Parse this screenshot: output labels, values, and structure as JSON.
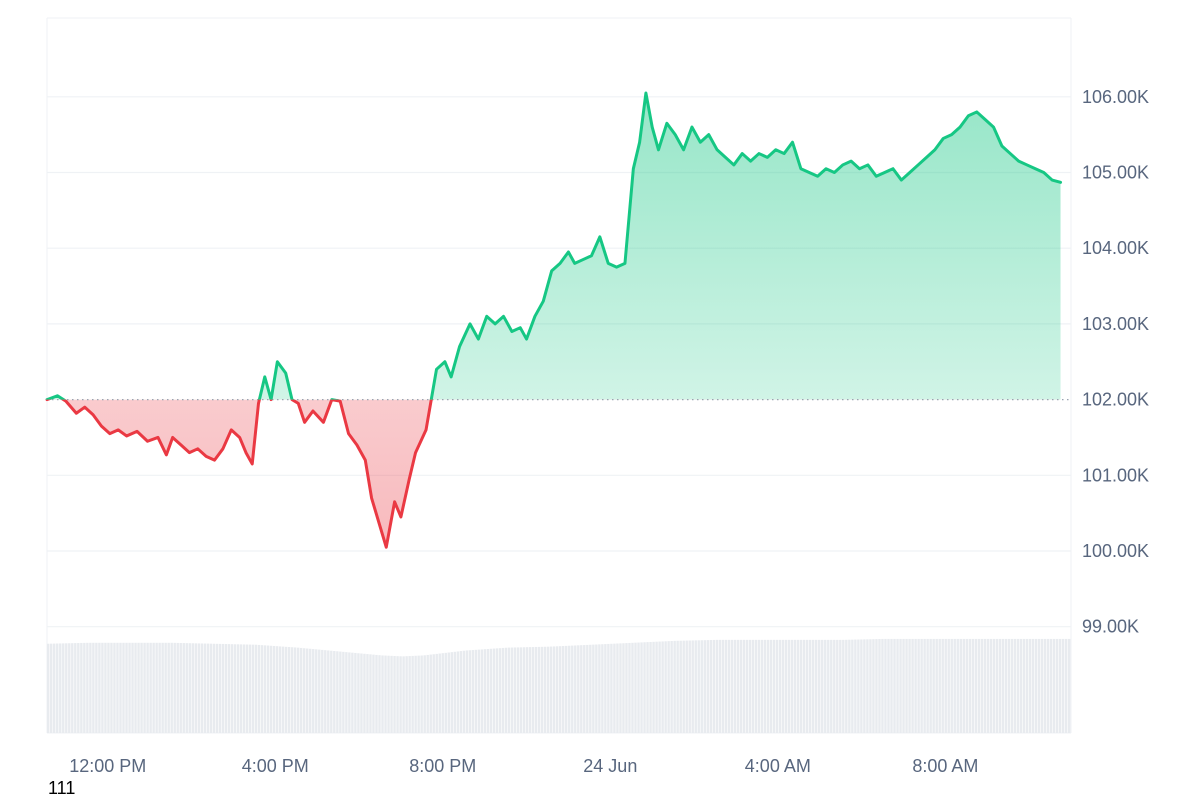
{
  "chart_data": {
    "type": "line",
    "baseline": 102000,
    "ylim": [
      98200,
      107000
    ],
    "y_ticks": [
      99000,
      100000,
      101000,
      102000,
      103000,
      104000,
      105000,
      106000
    ],
    "y_tick_labels": [
      "99.00K",
      "100.00K",
      "101.00K",
      "102.00K",
      "103.00K",
      "104.00K",
      "105.00K",
      "106.00K"
    ],
    "x_ticks": [
      {
        "t": 1.45,
        "label": "12:00 PM"
      },
      {
        "t": 5.45,
        "label": "4:00 PM"
      },
      {
        "t": 9.45,
        "label": "8:00 PM"
      },
      {
        "t": 13.45,
        "label": "24 Jun"
      },
      {
        "t": 17.45,
        "label": "4:00 AM"
      },
      {
        "t": 21.45,
        "label": "8:00 AM"
      }
    ],
    "xlim": [
      0,
      24.45
    ],
    "colors": {
      "up": "#16c784",
      "down": "#ea3943",
      "volume": "#e8ebef",
      "grid": "#eff2f5",
      "baseline_dots": "#9aa3b1"
    },
    "series": [
      {
        "values": [
          [
            0.0,
            102000
          ],
          [
            0.25,
            102050
          ],
          [
            0.45,
            101980
          ],
          [
            0.7,
            101820
          ],
          [
            0.9,
            101900
          ],
          [
            1.1,
            101800
          ],
          [
            1.3,
            101650
          ],
          [
            1.5,
            101550
          ],
          [
            1.7,
            101600
          ],
          [
            1.9,
            101520
          ],
          [
            2.15,
            101580
          ],
          [
            2.4,
            101450
          ],
          [
            2.65,
            101500
          ],
          [
            2.85,
            101270
          ],
          [
            3.0,
            101500
          ],
          [
            3.2,
            101400
          ],
          [
            3.4,
            101300
          ],
          [
            3.6,
            101350
          ],
          [
            3.8,
            101250
          ],
          [
            4.0,
            101200
          ],
          [
            4.2,
            101350
          ],
          [
            4.4,
            101600
          ],
          [
            4.6,
            101500
          ],
          [
            4.75,
            101300
          ],
          [
            4.9,
            101150
          ],
          [
            5.05,
            101950
          ],
          [
            5.2,
            102300
          ],
          [
            5.35,
            102000
          ],
          [
            5.5,
            102500
          ],
          [
            5.7,
            102350
          ],
          [
            5.85,
            102000
          ],
          [
            6.0,
            101950
          ],
          [
            6.15,
            101700
          ],
          [
            6.35,
            101850
          ],
          [
            6.6,
            101700
          ],
          [
            6.8,
            102000
          ],
          [
            7.0,
            101980
          ],
          [
            7.2,
            101550
          ],
          [
            7.4,
            101400
          ],
          [
            7.6,
            101200
          ],
          [
            7.75,
            100700
          ],
          [
            8.1,
            100050
          ],
          [
            8.3,
            100650
          ],
          [
            8.45,
            100450
          ],
          [
            8.65,
            100950
          ],
          [
            8.8,
            101300
          ],
          [
            9.05,
            101600
          ],
          [
            9.3,
            102400
          ],
          [
            9.5,
            102500
          ],
          [
            9.65,
            102300
          ],
          [
            9.85,
            102700
          ],
          [
            10.1,
            103000
          ],
          [
            10.3,
            102800
          ],
          [
            10.5,
            103100
          ],
          [
            10.7,
            103000
          ],
          [
            10.9,
            103100
          ],
          [
            11.1,
            102900
          ],
          [
            11.3,
            102950
          ],
          [
            11.45,
            102800
          ],
          [
            11.65,
            103100
          ],
          [
            11.85,
            103300
          ],
          [
            12.05,
            103700
          ],
          [
            12.25,
            103800
          ],
          [
            12.45,
            103950
          ],
          [
            12.6,
            103800
          ],
          [
            12.8,
            103850
          ],
          [
            13.0,
            103900
          ],
          [
            13.2,
            104150
          ],
          [
            13.4,
            103800
          ],
          [
            13.6,
            103750
          ],
          [
            13.8,
            103800
          ],
          [
            14.0,
            105050
          ],
          [
            14.15,
            105400
          ],
          [
            14.3,
            106050
          ],
          [
            14.45,
            105600
          ],
          [
            14.6,
            105300
          ],
          [
            14.8,
            105650
          ],
          [
            15.0,
            105500
          ],
          [
            15.2,
            105300
          ],
          [
            15.4,
            105600
          ],
          [
            15.6,
            105400
          ],
          [
            15.8,
            105500
          ],
          [
            16.0,
            105300
          ],
          [
            16.2,
            105200
          ],
          [
            16.4,
            105100
          ],
          [
            16.6,
            105250
          ],
          [
            16.8,
            105150
          ],
          [
            17.0,
            105250
          ],
          [
            17.2,
            105200
          ],
          [
            17.4,
            105300
          ],
          [
            17.6,
            105250
          ],
          [
            17.8,
            105400
          ],
          [
            18.0,
            105050
          ],
          [
            18.2,
            105000
          ],
          [
            18.4,
            104950
          ],
          [
            18.6,
            105050
          ],
          [
            18.8,
            105000
          ],
          [
            19.0,
            105100
          ],
          [
            19.2,
            105150
          ],
          [
            19.4,
            105050
          ],
          [
            19.6,
            105100
          ],
          [
            19.8,
            104950
          ],
          [
            20.0,
            105000
          ],
          [
            20.2,
            105050
          ],
          [
            20.4,
            104900
          ],
          [
            20.6,
            105000
          ],
          [
            20.8,
            105100
          ],
          [
            21.0,
            105200
          ],
          [
            21.2,
            105300
          ],
          [
            21.4,
            105450
          ],
          [
            21.6,
            105500
          ],
          [
            21.8,
            105600
          ],
          [
            22.0,
            105750
          ],
          [
            22.2,
            105800
          ],
          [
            22.4,
            105700
          ],
          [
            22.6,
            105600
          ],
          [
            22.8,
            105350
          ],
          [
            23.0,
            105250
          ],
          [
            23.2,
            105150
          ],
          [
            23.4,
            105100
          ],
          [
            23.6,
            105050
          ],
          [
            23.8,
            105000
          ],
          [
            24.0,
            104900
          ],
          [
            24.2,
            104870
          ]
        ]
      }
    ],
    "volume": [
      [
        0,
        0.92
      ],
      [
        1,
        0.93
      ],
      [
        2,
        0.93
      ],
      [
        3,
        0.93
      ],
      [
        4,
        0.92
      ],
      [
        5,
        0.91
      ],
      [
        6,
        0.88
      ],
      [
        7,
        0.84
      ],
      [
        8,
        0.8
      ],
      [
        8.5,
        0.79
      ],
      [
        9,
        0.8
      ],
      [
        10,
        0.85
      ],
      [
        11,
        0.88
      ],
      [
        12,
        0.89
      ],
      [
        13,
        0.91
      ],
      [
        14,
        0.93
      ],
      [
        15,
        0.95
      ],
      [
        16,
        0.96
      ],
      [
        17,
        0.96
      ],
      [
        18,
        0.96
      ],
      [
        19,
        0.96
      ],
      [
        20,
        0.97
      ],
      [
        21,
        0.97
      ],
      [
        22,
        0.97
      ],
      [
        23,
        0.97
      ],
      [
        24.45,
        0.97
      ]
    ]
  },
  "footer": {
    "text": "111"
  }
}
